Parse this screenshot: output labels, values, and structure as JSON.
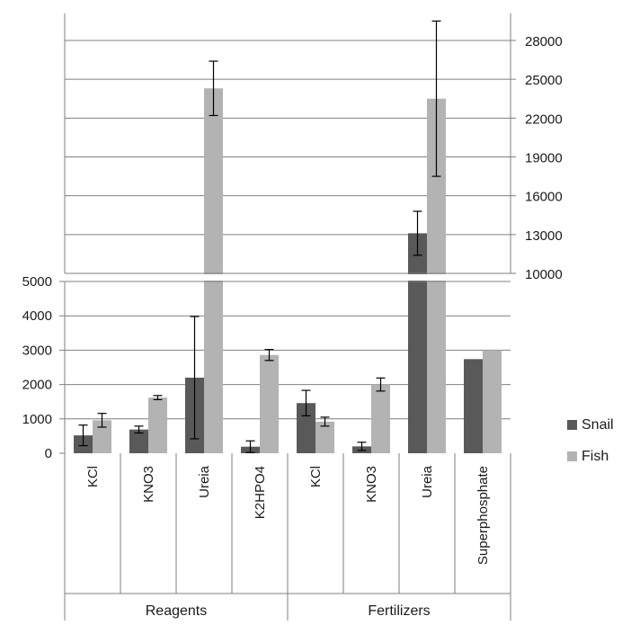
{
  "chart_data": {
    "type": "bar",
    "title": "",
    "xlabel": "",
    "ylabel": "",
    "groups": [
      {
        "label": "Reagents",
        "categories": [
          "KCl",
          "KNO3",
          "Ureia",
          "K2HPO4"
        ]
      },
      {
        "label": "Fertilizers",
        "categories": [
          "KCl",
          "KNO3",
          "Ureia",
          "Superphosphate"
        ]
      }
    ],
    "categories": [
      "KCl",
      "KNO3",
      "Ureia",
      "K2HPO4",
      "KCl",
      "KNO3",
      "Ureia",
      "Superphosphate"
    ],
    "series": [
      {
        "name": "Snail",
        "color": "#595959",
        "values": [
          520,
          690,
          2200,
          190,
          1460,
          200,
          13100,
          2740
        ],
        "errors": [
          300,
          100,
          1780,
          170,
          370,
          120,
          1700,
          0
        ]
      },
      {
        "name": "Fish",
        "color": "#b3b3b3",
        "values": [
          960,
          1620,
          24300,
          2860,
          920,
          2000,
          23500,
          3000
        ],
        "errors": [
          200,
          60,
          2100,
          160,
          130,
          190,
          6000,
          0
        ]
      }
    ],
    "axes": {
      "lower": {
        "range": [
          0,
          5000
        ],
        "ticks": [
          "0",
          "1000",
          "2000",
          "3000",
          "4000",
          "5000"
        ],
        "side": "left"
      },
      "upper": {
        "range": [
          10000,
          30000
        ],
        "ticks": [
          "10000",
          "13000",
          "16000",
          "19000",
          "22000",
          "25000",
          "28000"
        ],
        "side": "right"
      }
    },
    "broken_axis": true,
    "grid": true,
    "legend_position": "right"
  }
}
